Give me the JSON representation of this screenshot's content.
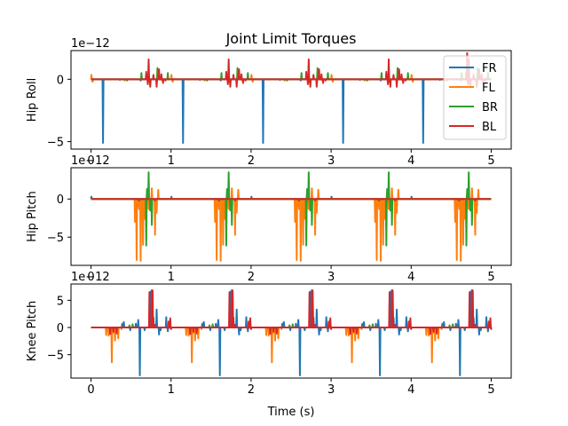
{
  "chart_data": {
    "type": "line",
    "title": "Joint Limit Torques",
    "xlabel": "Time (s)",
    "xlim": [
      -0.25,
      5.25
    ],
    "xticks": [
      0,
      1,
      2,
      3,
      4,
      5
    ],
    "legend": {
      "placement": "top-right",
      "entries": [
        "FR",
        "FL",
        "BR",
        "BL"
      ]
    },
    "series_colors": {
      "FR": "#1f77b4",
      "FL": "#ff7f0e",
      "BR": "#2ca02c",
      "BL": "#d62728"
    },
    "grid": false,
    "pattern_period": 1.0,
    "repeats": [
      0,
      1,
      2,
      3,
      4
    ],
    "subplots": [
      {
        "ylabel": "Hip Roll",
        "offset_text": "1e−12",
        "ylim": [
          -5.6,
          2.3
        ],
        "yticks": [
          -5,
          0
        ],
        "stroke_order": [
          "FL",
          "FR",
          "BR",
          "BL"
        ],
        "spikes": {
          "FR": [
            [
              0.15,
              -5.1
            ],
            [
              0.36,
              -0.05
            ],
            [
              0.62,
              -0.1
            ]
          ],
          "FL": [
            [
              0.005,
              0.35
            ],
            [
              0.02,
              -0.2
            ],
            [
              0.42,
              -0.1
            ],
            [
              0.88,
              -0.05
            ]
          ],
          "BR": [
            [
              0.63,
              0.5
            ],
            [
              0.83,
              0.9
            ],
            [
              0.96,
              0.5
            ],
            [
              0.45,
              -0.1
            ]
          ],
          "BL": [
            [
              0.69,
              0.6
            ],
            [
              0.71,
              -0.4
            ],
            [
              0.72,
              1.6
            ],
            [
              0.74,
              -0.6
            ],
            [
              0.78,
              0.35
            ],
            [
              0.82,
              -0.6
            ],
            [
              0.85,
              0.8
            ],
            [
              0.88,
              0.4
            ],
            [
              0.9,
              -0.3
            ],
            [
              0.93,
              -0.1
            ]
          ]
        },
        "extra_spikes": {
          "BL": [
            [
              4.7,
              2.1
            ]
          ]
        }
      },
      {
        "ylabel": "Hip Pitch",
        "offset_text": "1e−12",
        "ylim": [
          -8.7,
          4.1
        ],
        "yticks": [
          -5,
          0
        ],
        "stroke_order": [
          "FR",
          "FL",
          "BR",
          "BL"
        ],
        "spikes": {
          "FR": [
            [
              0.005,
              0.3
            ]
          ],
          "FL": [
            [
              0.55,
              -3.0
            ],
            [
              0.57,
              -8.0
            ],
            [
              0.6,
              -1.3
            ],
            [
              0.62,
              -8.1
            ],
            [
              0.65,
              -6.0
            ],
            [
              0.67,
              -2.6
            ],
            [
              0.72,
              -1.3
            ],
            [
              0.73,
              -1.1
            ],
            [
              0.74,
              -1.5
            ],
            [
              0.76,
              1.4
            ],
            [
              0.8,
              -4.7
            ],
            [
              0.82,
              -1.8
            ],
            [
              0.84,
              1.2
            ]
          ],
          "BR": [
            [
              0.69,
              -6.1
            ],
            [
              0.7,
              1.3
            ],
            [
              0.72,
              3.5
            ],
            [
              0.74,
              -1.5
            ],
            [
              0.76,
              -3.4
            ]
          ],
          "BL": [
            [
              0.6,
              -0.2
            ],
            [
              0.8,
              -0.2
            ]
          ]
        }
      },
      {
        "ylabel": "Knee Pitch",
        "offset_text": "1e−12",
        "ylim": [
          -9.3,
          8.0
        ],
        "yticks": [
          -5,
          0,
          5
        ],
        "stroke_order": [
          "FL",
          "FR",
          "BR",
          "BL"
        ],
        "spikes": {
          "FR": [
            [
              0.39,
              0.7
            ],
            [
              0.41,
              1.0
            ],
            [
              0.49,
              -0.5
            ],
            [
              0.56,
              0.7
            ],
            [
              0.59,
              1.4
            ],
            [
              0.61,
              -8.8
            ],
            [
              0.67,
              -0.5
            ],
            [
              0.74,
              6.6
            ],
            [
              0.76,
              6.9
            ],
            [
              0.78,
              1.8
            ],
            [
              0.82,
              3.3
            ],
            [
              0.85,
              -1.3
            ],
            [
              0.87,
              -0.5
            ],
            [
              0.94,
              1.9
            ],
            [
              0.96,
              -0.7
            ]
          ],
          "FL": [
            [
              0.19,
              -1.4
            ],
            [
              0.2,
              -0.3
            ],
            [
              0.22,
              -1.5
            ],
            [
              0.26,
              -6.4
            ],
            [
              0.28,
              -0.9
            ],
            [
              0.3,
              -2.4
            ],
            [
              0.34,
              -2.0
            ],
            [
              0.38,
              -0.3
            ]
          ],
          "BR": [
            [
              0.48,
              0.4
            ],
            [
              0.52,
              0.6
            ]
          ],
          "BL": [
            [
              0.24,
              -1.2
            ],
            [
              0.28,
              -0.8
            ],
            [
              0.32,
              -1.1
            ],
            [
              0.73,
              6.5
            ],
            [
              0.77,
              6.8
            ],
            [
              0.8,
              0.5
            ],
            [
              0.97,
              1.1
            ],
            [
              0.99,
              1.7
            ],
            [
              1.0,
              -0.3
            ]
          ]
        }
      }
    ]
  }
}
